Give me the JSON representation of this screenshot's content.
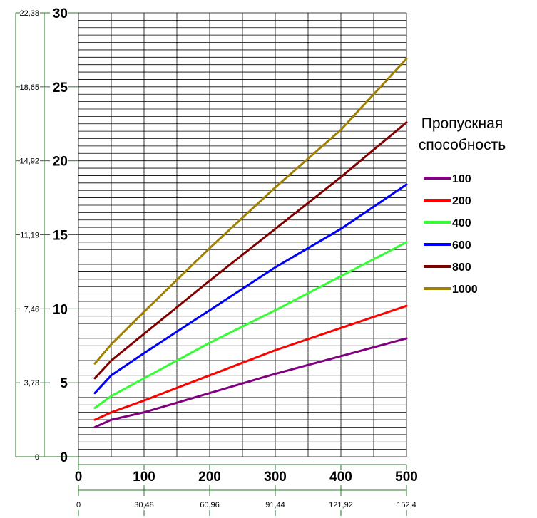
{
  "chart_data": {
    "type": "line",
    "title": "",
    "xlabel": "",
    "ylabel": "",
    "xlim": [
      0,
      500
    ],
    "ylim": [
      0,
      30
    ],
    "grid": true,
    "x_ticks": [
      "0",
      "100",
      "200",
      "300",
      "400",
      "500"
    ],
    "y_ticks": [
      "0",
      "5",
      "10",
      "15",
      "20",
      "25",
      "30"
    ],
    "x_secondary_ticks": [
      "0",
      "30,48",
      "60,96",
      "91,44",
      "121,92",
      "152,4"
    ],
    "y_secondary_ticks": [
      "0",
      "3,73",
      "7,46",
      "11,19",
      "14,92",
      "18,65",
      "22,38"
    ],
    "legend": {
      "title_lines": [
        "Пропускная",
        "способность"
      ],
      "placement": "right"
    },
    "series": [
      {
        "name": "100",
        "color": "#800080",
        "x": [
          25,
          50,
          100,
          200,
          300,
          400,
          500
        ],
        "y": [
          2.0,
          2.5,
          3.0,
          4.3,
          5.6,
          6.8,
          8.0
        ]
      },
      {
        "name": "200",
        "color": "#ff0000",
        "x": [
          25,
          50,
          100,
          200,
          300,
          400,
          500
        ],
        "y": [
          2.5,
          3.0,
          3.8,
          5.5,
          7.2,
          8.7,
          10.2
        ]
      },
      {
        "name": "400",
        "color": "#33ff33",
        "x": [
          25,
          50,
          100,
          200,
          300,
          400,
          500
        ],
        "y": [
          3.3,
          4.1,
          5.3,
          7.7,
          9.9,
          12.2,
          14.5
        ]
      },
      {
        "name": "600",
        "color": "#0000ff",
        "x": [
          25,
          50,
          100,
          200,
          300,
          400,
          500
        ],
        "y": [
          4.3,
          5.5,
          7.0,
          9.9,
          12.8,
          15.4,
          18.4
        ]
      },
      {
        "name": "800",
        "color": "#800000",
        "x": [
          25,
          50,
          100,
          200,
          300,
          400,
          500
        ],
        "y": [
          5.3,
          6.5,
          8.3,
          11.9,
          15.4,
          18.9,
          22.6
        ]
      },
      {
        "name": "1000",
        "color": "#a08000",
        "x": [
          25,
          50,
          100,
          200,
          300,
          400,
          500
        ],
        "y": [
          6.3,
          7.6,
          9.8,
          14.1,
          18.2,
          22.1,
          26.9
        ]
      }
    ]
  }
}
